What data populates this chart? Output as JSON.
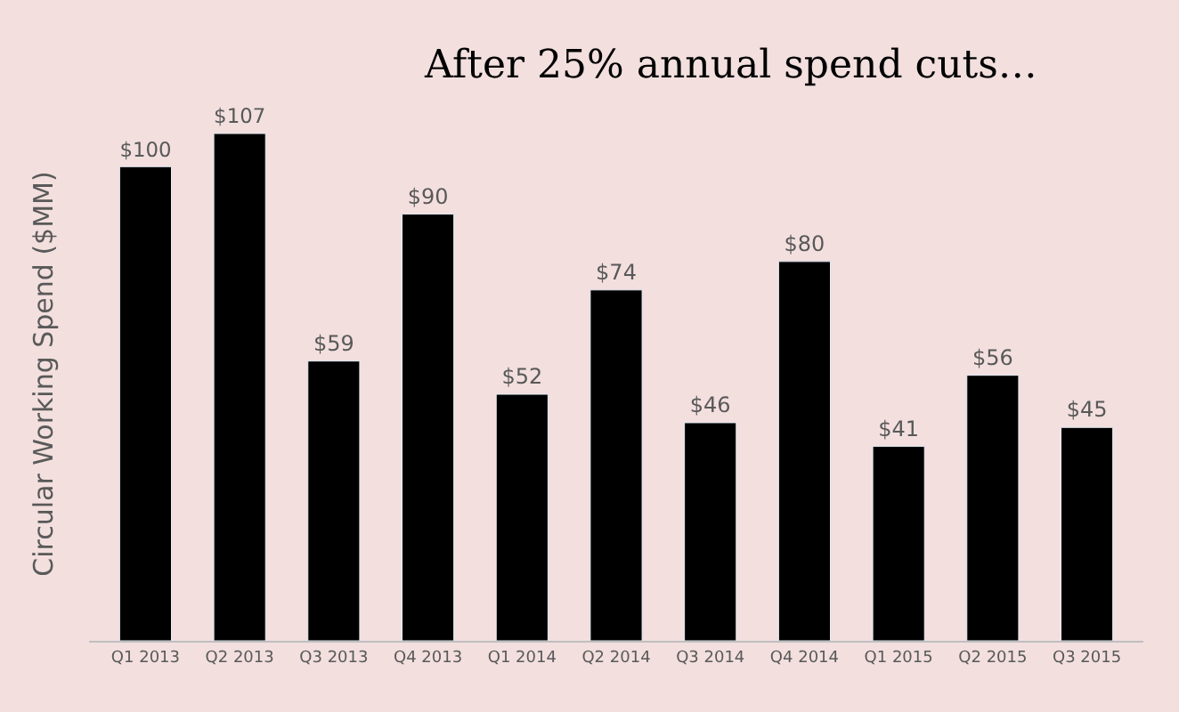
{
  "chart_data": {
    "type": "bar",
    "title": "After 25% annual spend cuts…",
    "ylabel": "Circular Working Spend ($MM)",
    "categories": [
      "Q1 2013",
      "Q2 2013",
      "Q3 2013",
      "Q4 2013",
      "Q1 2014",
      "Q2 2014",
      "Q3 2014",
      "Q4 2014",
      "Q1 2015",
      "Q2 2015",
      "Q3 2015"
    ],
    "values": [
      100,
      107,
      59,
      90,
      52,
      74,
      46,
      80,
      41,
      56,
      45
    ],
    "value_labels": [
      "$100",
      "$107",
      "$59",
      "$90",
      "$52",
      "$74",
      "$46",
      "$80",
      "$41",
      "$56",
      "$45"
    ],
    "color": "#000000",
    "grid": false
  }
}
